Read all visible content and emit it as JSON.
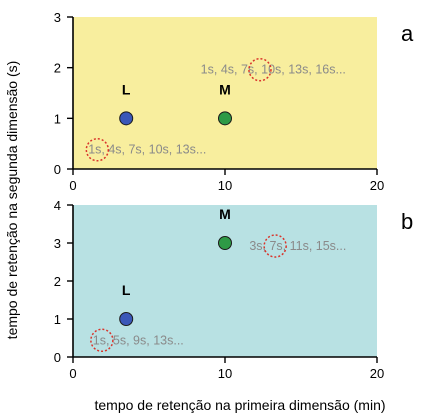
{
  "chart_data": {
    "type": "scatter",
    "xlabel": "tempo de retenção na primeira dimensão (min)",
    "ylabel": "tempo de retenção na segunda dimensão (s)",
    "panels": [
      {
        "label": "a",
        "background": "#f8ee9e",
        "xlim": [
          0,
          20
        ],
        "ylim": [
          0,
          3
        ],
        "xticks": [
          "0",
          "10",
          "20"
        ],
        "yticks": [
          "0",
          "1",
          "2",
          "3"
        ],
        "points": [
          {
            "name": "L",
            "x": 3.5,
            "y": 1,
            "color": "#3a57b8"
          },
          {
            "name": "M",
            "x": 10,
            "y": 1,
            "color": "#2e9a46"
          }
        ],
        "annotations": [
          {
            "text": "1s, 4s, 7s, 10s, 13s...",
            "x": 1.0,
            "y": 0.38,
            "circle_x": 1.6
          },
          {
            "text": "1s, 4s, 7s, 10s, 13s, 16s...",
            "x": 8.4,
            "y": 1.96,
            "circle_x": 12.3
          }
        ]
      },
      {
        "label": "b",
        "background": "#b8e1e3",
        "xlim": [
          0,
          20
        ],
        "ylim": [
          0,
          4
        ],
        "xticks": [
          "0",
          "10",
          "20"
        ],
        "yticks": [
          "0",
          "1",
          "2",
          "3",
          "4"
        ],
        "points": [
          {
            "name": "L",
            "x": 3.5,
            "y": 1,
            "color": "#3a57b8"
          },
          {
            "name": "M",
            "x": 10,
            "y": 3,
            "color": "#2e9a46"
          }
        ],
        "annotations": [
          {
            "text": "1s, 5s, 9s, 13s...",
            "x": 1.3,
            "y": 0.44,
            "circle_x": 1.9
          },
          {
            "text": "3s, 7s, 11s, 15s...",
            "x": 11.6,
            "y": 2.92,
            "circle_x": 13.3
          }
        ]
      }
    ],
    "circle_color": "#d9342b",
    "grid": false,
    "legend": "none"
  }
}
